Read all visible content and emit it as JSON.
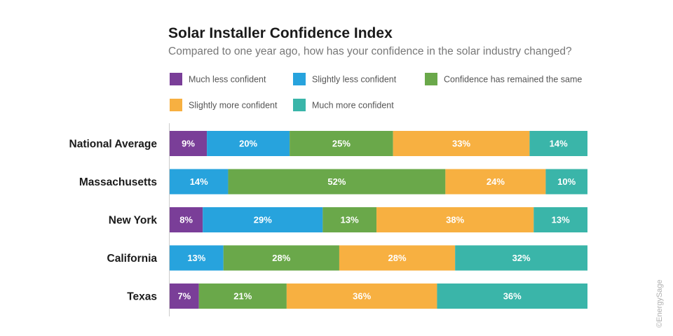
{
  "chart_data": {
    "type": "bar",
    "orientation": "horizontal",
    "stacked": true,
    "title": "Solar Installer Confidence Index",
    "subtitle": "Compared to one year ago, how has your confidence in the solar industry changed?",
    "categories": [
      "National Average",
      "Massachusetts",
      "New York",
      "California",
      "Texas"
    ],
    "series": [
      {
        "name": "Much less confident",
        "color": "#7a3e98",
        "values": [
          9,
          0,
          8,
          0,
          7
        ]
      },
      {
        "name": "Slightly less confident",
        "color": "#27a3dd",
        "values": [
          20,
          14,
          29,
          13,
          0
        ]
      },
      {
        "name": "Confidence has remained the same",
        "color": "#6aa84a",
        "values": [
          25,
          52,
          13,
          28,
          21
        ]
      },
      {
        "name": "Slightly more confident",
        "color": "#f7b041",
        "values": [
          33,
          24,
          38,
          28,
          36
        ]
      },
      {
        "name": "Much more confident",
        "color": "#3ab5a9",
        "values": [
          14,
          10,
          13,
          32,
          36
        ]
      }
    ],
    "legend_position": "top-left",
    "grid": false,
    "value_suffix": "%",
    "credit": "©EnergySage"
  }
}
